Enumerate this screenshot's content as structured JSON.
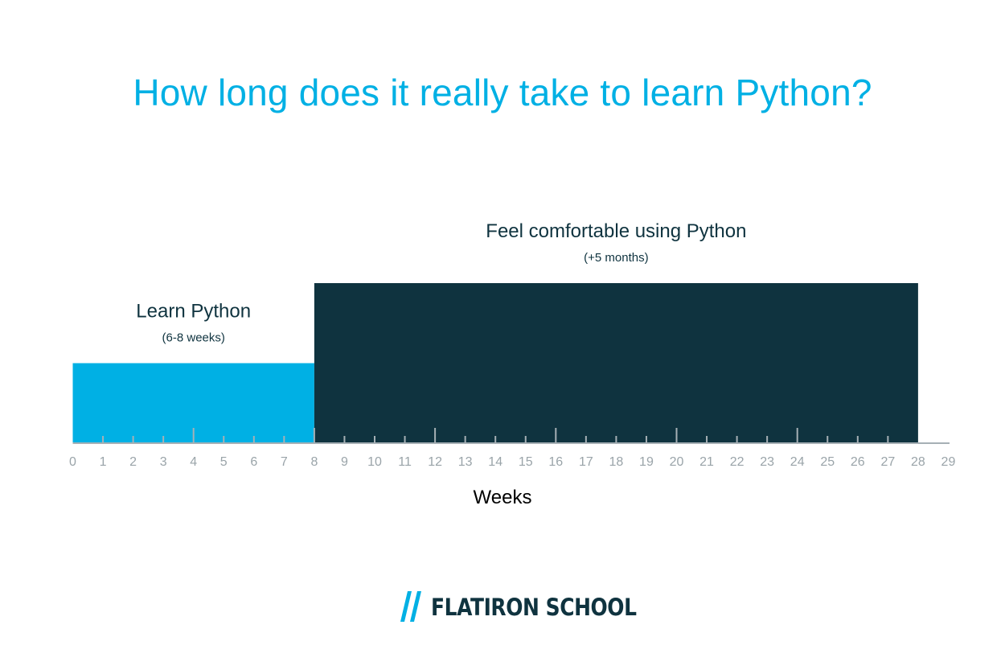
{
  "title": "How long does it really take to learn Python?",
  "colors": {
    "title": "#00b0e4",
    "learn_bar": "#00b0e4",
    "comfortable_bar": "#0f333f",
    "label_text": "#0f333f",
    "axis": "#a6b0b5",
    "tick_labels": "#9aa4a9",
    "xlabel": "#000000",
    "logo_mark": "#00b0e4",
    "logo_text": "#0f333f"
  },
  "chart_data": {
    "type": "bar",
    "title": "How long does it really take to learn Python?",
    "xlabel": "Weeks",
    "ylabel": "",
    "xlim": [
      0,
      29
    ],
    "x_ticks": [
      0,
      1,
      2,
      3,
      4,
      5,
      6,
      7,
      8,
      9,
      10,
      11,
      12,
      13,
      14,
      15,
      16,
      17,
      18,
      19,
      20,
      21,
      22,
      23,
      24,
      25,
      26,
      27,
      28,
      29
    ],
    "major_ticks": [
      4,
      8,
      12,
      16,
      20,
      24,
      28
    ],
    "grid": false,
    "legend": "none",
    "series": [
      {
        "name": "Learn Python",
        "annotation": "(6-8 weeks)",
        "start": 0,
        "end": 8,
        "height": 1,
        "color": "#00b0e4"
      },
      {
        "name": "Feel comfortable using Python",
        "annotation": "(+5 months)",
        "start": 8,
        "end": 28,
        "height": 2,
        "color": "#0f333f"
      }
    ]
  },
  "logo": {
    "text": "FLATIRON SCHOOL",
    "mark": "double-slash-icon"
  }
}
